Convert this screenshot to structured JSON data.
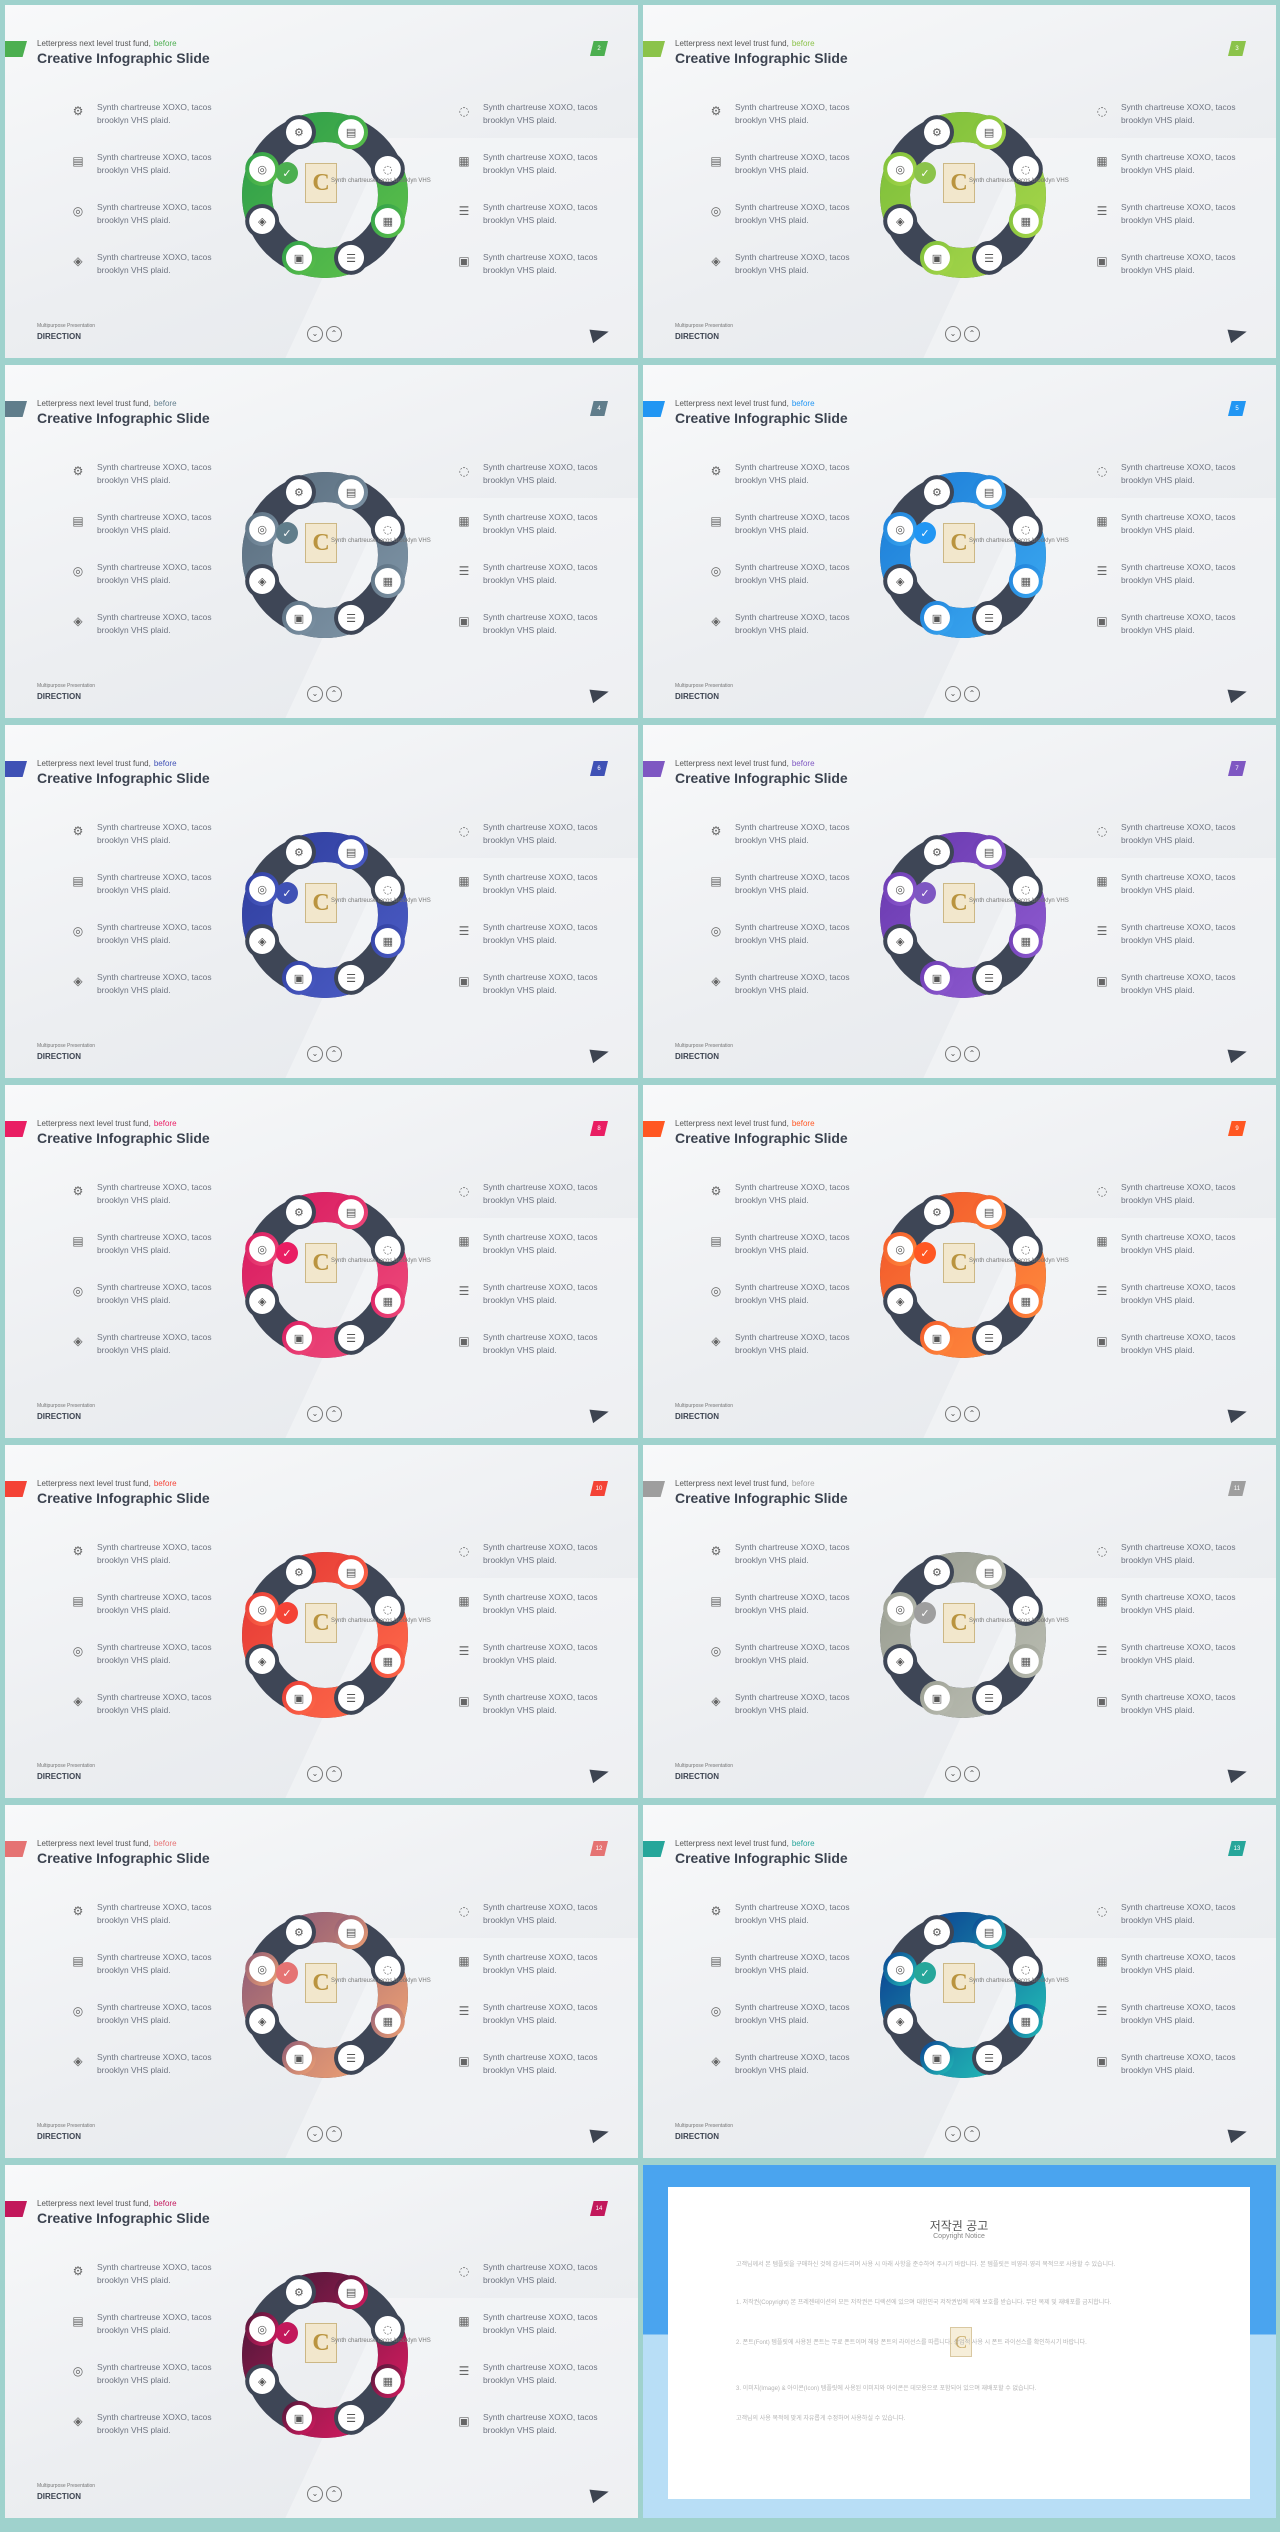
{
  "common": {
    "subtitle": "Letterpress next level trust fund,",
    "subtitle_highlight": "before",
    "title": "Creative Infographic Slide",
    "items_left": [
      {
        "icon": "gear-icon",
        "text": "Synth chartreuse XOXO, tacos brooklyn VHS plaid."
      },
      {
        "icon": "monitor-chart-icon",
        "text": "Synth chartreuse XOXO, tacos brooklyn VHS plaid."
      },
      {
        "icon": "target-icon",
        "text": "Synth chartreuse XOXO, tacos brooklyn VHS plaid."
      },
      {
        "icon": "layers-icon",
        "text": "Synth chartreuse XOXO, tacos brooklyn VHS plaid."
      }
    ],
    "items_right": [
      {
        "icon": "chat-icon",
        "text": "Synth chartreuse XOXO, tacos brooklyn VHS plaid."
      },
      {
        "icon": "film-icon",
        "text": "Synth chartreuse XOXO, tacos brooklyn VHS plaid."
      },
      {
        "icon": "sliders-icon",
        "text": "Synth chartreuse XOXO, tacos brooklyn VHS plaid."
      },
      {
        "icon": "briefcase-icon",
        "text": "Synth chartreuse XOXO, tacos brooklyn VHS plaid."
      }
    ],
    "center_text": "Synth chartreuse tacos brooklyn VHS",
    "footer_small": "Multipurpose Presentation",
    "footer_big": "DIRECTION",
    "logo_letter": "C"
  },
  "slides": [
    {
      "page": "2",
      "colors": [
        "#2e9e4a",
        "#5cc04a"
      ],
      "dark": "#3e4656",
      "highlight": "#4caf50"
    },
    {
      "page": "3",
      "colors": [
        "#7dbf3a",
        "#a6d64a"
      ],
      "dark": "#3e4656",
      "highlight": "#8bc34a"
    },
    {
      "page": "4",
      "colors": [
        "#5b6f80",
        "#7e94a6"
      ],
      "dark": "#3e4656",
      "highlight": "#607d8b"
    },
    {
      "page": "5",
      "colors": [
        "#1e7fd8",
        "#3aa7f0"
      ],
      "dark": "#3e4656",
      "highlight": "#2196f3"
    },
    {
      "page": "6",
      "colors": [
        "#303f9f",
        "#4a5bc4"
      ],
      "dark": "#3e4656",
      "highlight": "#3f51b5"
    },
    {
      "page": "7",
      "colors": [
        "#6a3ab0",
        "#8e5ad0"
      ],
      "dark": "#3e4656",
      "highlight": "#7e57c2"
    },
    {
      "page": "8",
      "colors": [
        "#d81b60",
        "#ee4a7a"
      ],
      "dark": "#3e4656",
      "highlight": "#e91e63"
    },
    {
      "page": "9",
      "colors": [
        "#f2592b",
        "#ff8a3d"
      ],
      "dark": "#3e4656",
      "highlight": "#ff5722"
    },
    {
      "page": "10",
      "colors": [
        "#e53935",
        "#ff6a4a"
      ],
      "dark": "#3e4656",
      "highlight": "#f44336"
    },
    {
      "page": "11",
      "colors": [
        "#9a9e92",
        "#b9bcb1"
      ],
      "dark": "#3e4656",
      "highlight": "#9e9e9e"
    },
    {
      "page": "12",
      "colors": [
        "#8e5a76",
        "#f0a273"
      ],
      "dark": "#3e4656",
      "highlight": "#e57373"
    },
    {
      "page": "13",
      "colors": [
        "#0b3d91",
        "#22c1b8"
      ],
      "dark": "#3e4656",
      "highlight": "#26a69a"
    },
    {
      "page": "14",
      "colors": [
        "#4a1838",
        "#d81b60"
      ],
      "dark": "#3e4656",
      "highlight": "#c2185b"
    }
  ],
  "copyright": {
    "title": "저작권 공고",
    "subtitle": "Copyright Notice",
    "paragraphs": [
      "고객님께서 본 템플릿을 구매하신 것에 감사드리며 사용 시 아래 사항을 준수하여 주시기 바랍니다. 본 템플릿은 비영리·영리 목적으로 사용할 수 있습니다.",
      "1. 저작권(Copyright) 본 프레젠테이션의 모든 저작권은 디렉션에 있으며 대한민국 저작권법에 의해 보호를 받습니다. 무단 복제 및 재배포를 금지합니다.",
      "2. 폰트(Font) 템플릿에 사용된 폰트는 무료 폰트이며 해당 폰트의 라이선스를 따릅니다. 상업적 사용 시 폰트 라이선스를 확인하시기 바랍니다.",
      "3. 이미지(Image) & 아이콘(Icon) 템플릿에 사용된 이미지와 아이콘은 데모용으로 포함되어 있으며 재배포할 수 없습니다.",
      "고객님의 사용 목적에 맞게 자유롭게 수정하여 사용하실 수 있습니다."
    ]
  }
}
